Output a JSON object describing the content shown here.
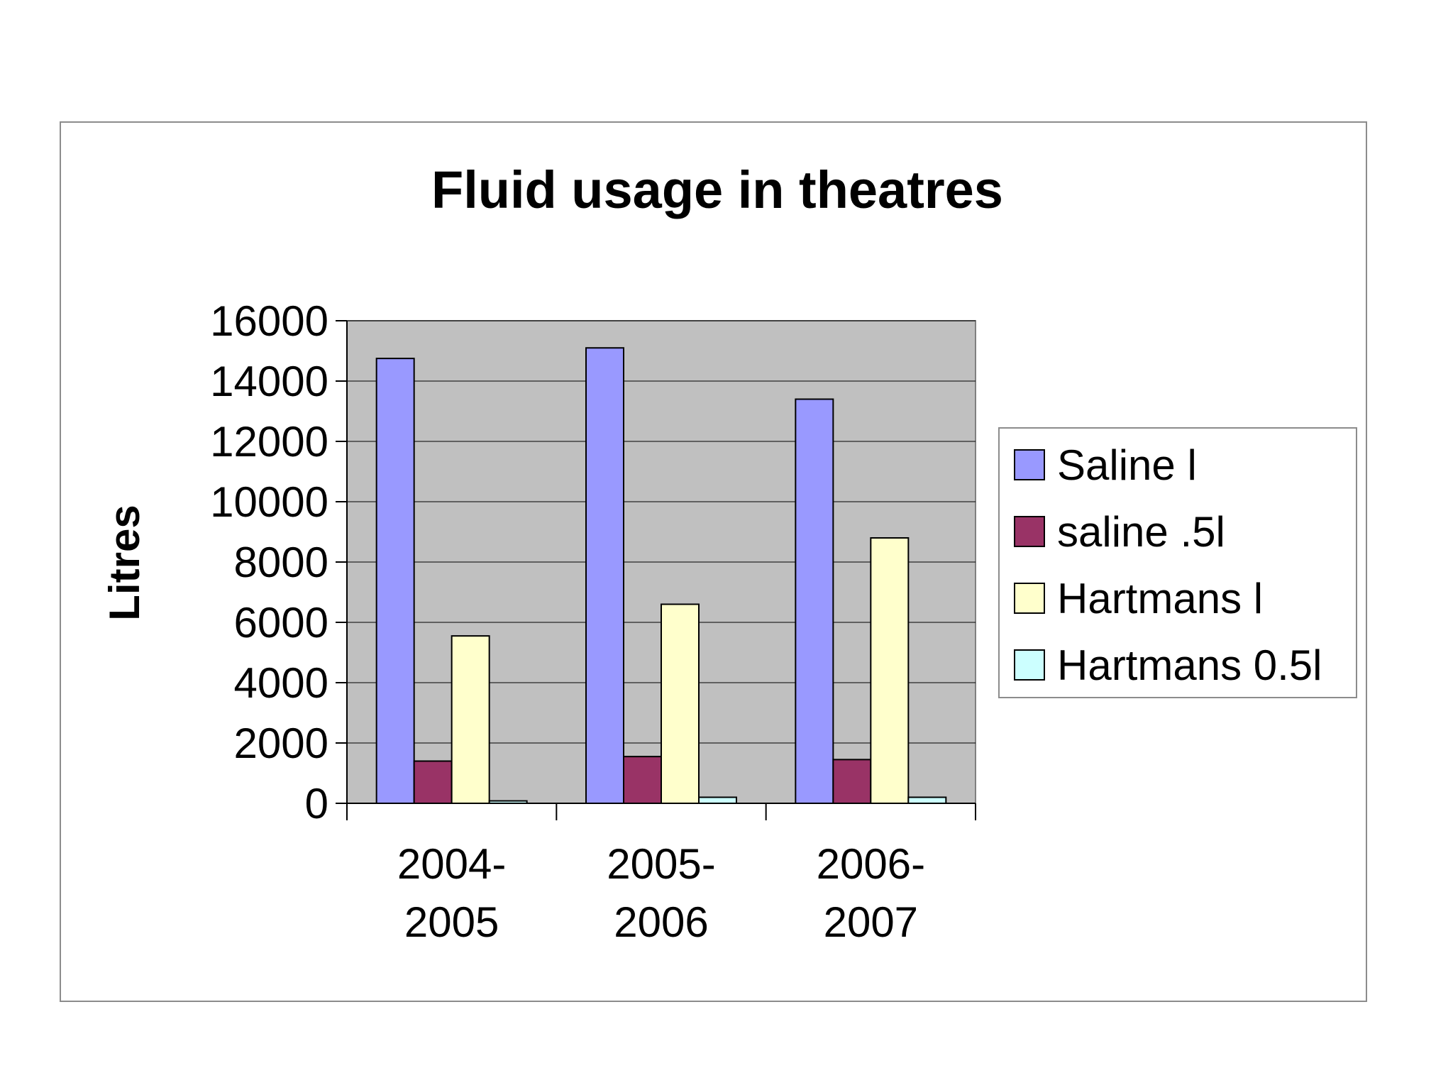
{
  "chart_data": {
    "type": "bar",
    "title": "Fluid usage in theatres",
    "xlabel": "",
    "ylabel": "Litres",
    "categories": [
      [
        "2004-",
        "2005"
      ],
      [
        "2005-",
        "2006"
      ],
      [
        "2006-",
        "2007"
      ]
    ],
    "series": [
      {
        "name": "Saline l",
        "color": "#9999ff",
        "values": [
          14750,
          15100,
          13400
        ]
      },
      {
        "name": "saline .5l",
        "color": "#993366",
        "values": [
          1400,
          1550,
          1450
        ]
      },
      {
        "name": "Hartmans l",
        "color": "#ffffcc",
        "values": [
          5550,
          6600,
          8800
        ]
      },
      {
        "name": "Hartmans 0.5l",
        "color": "#ccffff",
        "values": [
          80,
          200,
          200
        ]
      }
    ],
    "yticks": [
      "0",
      "2000",
      "4000",
      "6000",
      "8000",
      "10000",
      "12000",
      "14000",
      "16000"
    ],
    "ylim": [
      0,
      16000
    ],
    "grid": true,
    "legend": "right",
    "plot_background": "#c0c0c0"
  }
}
